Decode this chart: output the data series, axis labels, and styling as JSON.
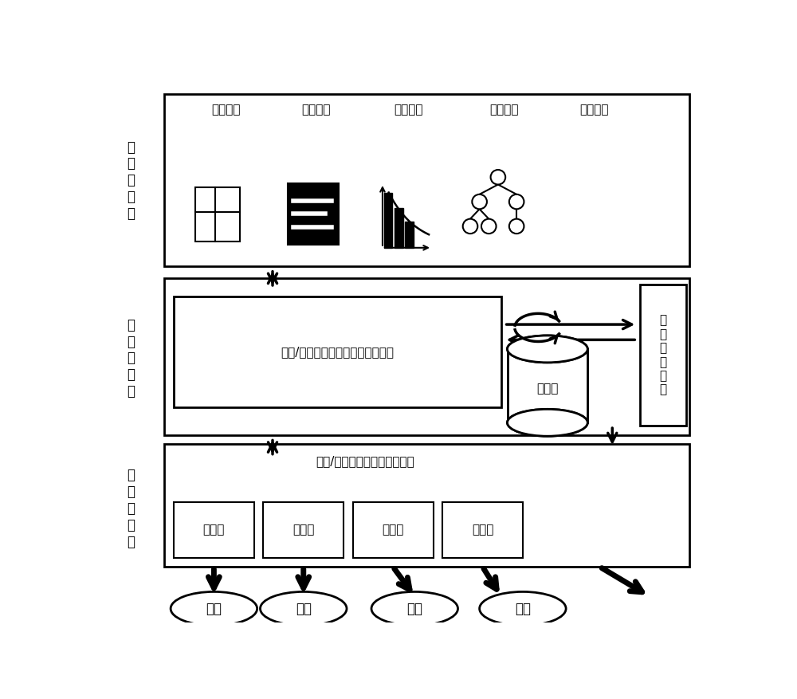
{
  "bg_color": "#ffffff",
  "top_labels": [
    "配置管理",
    "故障管理",
    "性能管理",
    "拓扑管理",
    "安全管理"
  ],
  "processing_text": "故障/性能数据的归一化处理，入库",
  "collection_text": "故障/性能等数据的采集，入库",
  "adapter_text": "适配器",
  "network_element_text": "网元",
  "database_text": "数据库",
  "northbound_text": "北\n向\n接\n口\n服\n务",
  "layer_label_1": "数\n据\n应\n用\n层",
  "layer_label_2": "数\n据\n处\n理\n层",
  "layer_label_3": "数\n据\n采\n集\n层"
}
